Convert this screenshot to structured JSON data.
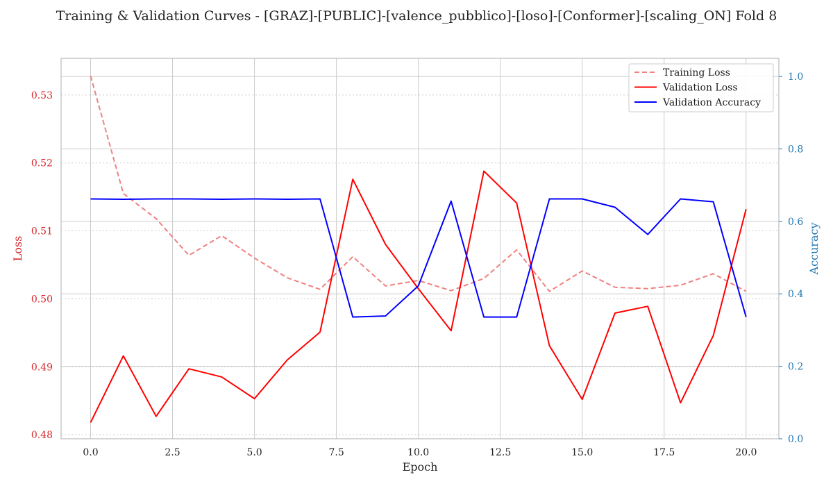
{
  "chart_data": {
    "type": "line",
    "title": "Training & Validation Curves - [GRAZ]-[PUBLIC]-[valence_pubblico]-[loso]-[Conformer]-[scaling_ON] Fold 8",
    "xlabel": "Epoch",
    "ylabel_left": "Loss",
    "ylabel_right": "Accuracy",
    "xlim": [
      -0.9,
      21.0
    ],
    "ylim_left": [
      0.4794,
      0.5354
    ],
    "ylim_right": [
      0.0,
      1.05
    ],
    "x_ticks": [
      0.0,
      2.5,
      5.0,
      7.5,
      10.0,
      12.5,
      15.0,
      17.5,
      20.0
    ],
    "x_tick_labels": [
      "0.0",
      "2.5",
      "5.0",
      "7.5",
      "10.0",
      "12.5",
      "15.0",
      "17.5",
      "20.0"
    ],
    "y_ticks_left": [
      0.48,
      0.49,
      0.5,
      0.51,
      0.52,
      0.53
    ],
    "y_tick_labels_left": [
      "0.48",
      "0.49",
      "0.50",
      "0.51",
      "0.52",
      "0.53"
    ],
    "y_ticks_right": [
      0.0,
      0.2,
      0.4,
      0.6,
      0.8,
      1.0
    ],
    "y_tick_labels_right": [
      "0.0",
      "0.2",
      "0.4",
      "0.6",
      "0.8",
      "1.0"
    ],
    "grid": true,
    "legend_position": "top-right",
    "colors": {
      "training_loss": "#f08080",
      "validation_loss": "#ff0000",
      "validation_accuracy": "#0000ff",
      "left_axis": "#d62728",
      "right_axis": "#1f77b4",
      "grid": "#cccccc",
      "frame": "#bbbbbb"
    },
    "x": [
      0,
      1,
      2,
      3,
      4,
      5,
      6,
      7,
      8,
      9,
      10,
      11,
      12,
      13,
      14,
      15,
      16,
      17,
      18,
      19,
      20
    ],
    "series": [
      {
        "name": "Training Loss",
        "axis": "left",
        "style": "dashed",
        "values": [
          0.5328,
          0.5155,
          0.5118,
          0.5064,
          0.5093,
          0.506,
          0.5031,
          0.5014,
          0.5062,
          0.5019,
          0.5027,
          0.5012,
          0.503,
          0.5072,
          0.5011,
          0.5041,
          0.5017,
          0.5015,
          0.502,
          0.5037,
          0.5011
        ]
      },
      {
        "name": "Validation Loss",
        "axis": "left",
        "style": "solid",
        "values": [
          0.4818,
          0.4916,
          0.4827,
          0.4897,
          0.4885,
          0.4853,
          0.491,
          0.4951,
          0.5176,
          0.508,
          0.5015,
          0.4953,
          0.5188,
          0.5141,
          0.4931,
          0.4852,
          0.4979,
          0.4989,
          0.4847,
          0.4946,
          0.5132
        ]
      },
      {
        "name": "Validation Accuracy",
        "axis": "right",
        "style": "solid",
        "values": [
          0.662,
          0.661,
          0.662,
          0.662,
          0.661,
          0.662,
          0.661,
          0.662,
          0.336,
          0.339,
          0.422,
          0.656,
          0.336,
          0.336,
          0.662,
          0.662,
          0.639,
          0.564,
          0.662,
          0.654,
          0.336
        ]
      }
    ]
  }
}
